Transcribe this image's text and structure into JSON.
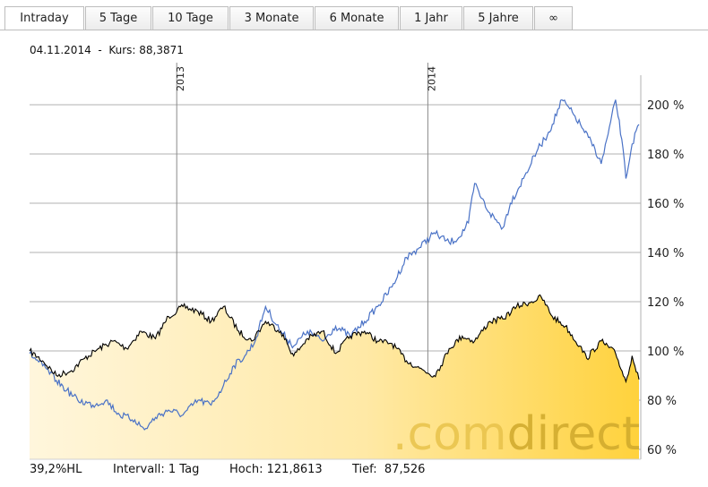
{
  "tabs": [
    {
      "label": "Intraday",
      "active": true
    },
    {
      "label": "5 Tage",
      "active": false
    },
    {
      "label": "10 Tage",
      "active": false
    },
    {
      "label": "3 Monate",
      "active": false
    },
    {
      "label": "6 Monate",
      "active": false
    },
    {
      "label": "1 Jahr",
      "active": false
    },
    {
      "label": "5 Jahre",
      "active": false
    },
    {
      "label": "∞",
      "active": false
    }
  ],
  "info": {
    "date": "04.11.2014",
    "separator": "-",
    "price_label": "Kurs:",
    "price": "88,3871"
  },
  "footer": {
    "hl": "39,2%HL",
    "interval": "Intervall: 1 Tag",
    "high": "Hoch: 121,8613",
    "low": "Tief:  87,526"
  },
  "watermark": {
    "part1": ".com",
    "part2": "direct"
  },
  "colors": {
    "main_line": "#000000",
    "comparison_line": "#4a72c6",
    "fill_light": "#fff6dc",
    "fill_dark": "#ffd23c",
    "grid": "#b0b0b0"
  },
  "chart_data": {
    "type": "line",
    "x_range": [
      "2012-06-01",
      "2014-11-04"
    ],
    "y_axis": {
      "min": 56,
      "max": 212,
      "ticks": [
        "200 %",
        "180 %",
        "160 %",
        "140 %",
        "120 %",
        "100 %",
        "80 %",
        "60 %"
      ],
      "tick_values": [
        200,
        180,
        160,
        140,
        120,
        100,
        80,
        60
      ]
    },
    "x_ticks": [
      {
        "label": "2013",
        "date": "2013-01-01"
      },
      {
        "label": "2014",
        "date": "2014-01-01"
      }
    ],
    "grid": true,
    "series": [
      {
        "role": "main",
        "points": [
          [
            "2012-06-01",
            100
          ],
          [
            "2012-06-20",
            96
          ],
          [
            "2012-07-10",
            90
          ],
          [
            "2012-08-01",
            92
          ],
          [
            "2012-08-20",
            97
          ],
          [
            "2012-09-10",
            101
          ],
          [
            "2012-10-01",
            104
          ],
          [
            "2012-10-20",
            101
          ],
          [
            "2012-11-10",
            108
          ],
          [
            "2012-12-01",
            105
          ],
          [
            "2012-12-20",
            114
          ],
          [
            "2013-01-10",
            118
          ],
          [
            "2013-02-01",
            116
          ],
          [
            "2013-02-20",
            112
          ],
          [
            "2013-03-10",
            118
          ],
          [
            "2013-04-01",
            108
          ],
          [
            "2013-04-20",
            104
          ],
          [
            "2013-05-10",
            112
          ],
          [
            "2013-06-01",
            108
          ],
          [
            "2013-06-20",
            98
          ],
          [
            "2013-07-10",
            105
          ],
          [
            "2013-08-01",
            108
          ],
          [
            "2013-08-20",
            99
          ],
          [
            "2013-09-10",
            106
          ],
          [
            "2013-10-01",
            108
          ],
          [
            "2013-10-20",
            104
          ],
          [
            "2013-11-10",
            103
          ],
          [
            "2013-12-01",
            96
          ],
          [
            "2013-12-20",
            93
          ],
          [
            "2014-01-10",
            90
          ],
          [
            "2014-01-20",
            94
          ],
          [
            "2014-02-01",
            101
          ],
          [
            "2014-02-20",
            106
          ],
          [
            "2014-03-10",
            104
          ],
          [
            "2014-04-01",
            112
          ],
          [
            "2014-04-20",
            113
          ],
          [
            "2014-05-10",
            118
          ],
          [
            "2014-06-01",
            120
          ],
          [
            "2014-06-15",
            121.86
          ],
          [
            "2014-07-01",
            114
          ],
          [
            "2014-07-20",
            110
          ],
          [
            "2014-08-10",
            102
          ],
          [
            "2014-08-20",
            97
          ],
          [
            "2014-09-10",
            104
          ],
          [
            "2014-10-01",
            99
          ],
          [
            "2014-10-16",
            87.53
          ],
          [
            "2014-10-25",
            98
          ],
          [
            "2014-11-04",
            88.39
          ]
        ]
      },
      {
        "role": "comparison",
        "points": [
          [
            "2012-06-01",
            99
          ],
          [
            "2012-06-20",
            94
          ],
          [
            "2012-07-10",
            88
          ],
          [
            "2012-07-25",
            84
          ],
          [
            "2012-08-10",
            80
          ],
          [
            "2012-09-01",
            78
          ],
          [
            "2012-09-20",
            80
          ],
          [
            "2012-10-10",
            74
          ],
          [
            "2012-11-01",
            72
          ],
          [
            "2012-11-15",
            68
          ],
          [
            "2012-12-01",
            73
          ],
          [
            "2012-12-20",
            76
          ],
          [
            "2013-01-10",
            74
          ],
          [
            "2013-02-01",
            80
          ],
          [
            "2013-02-20",
            78
          ],
          [
            "2013-03-10",
            86
          ],
          [
            "2013-03-25",
            94
          ],
          [
            "2013-04-10",
            98
          ],
          [
            "2013-04-25",
            104
          ],
          [
            "2013-05-10",
            118
          ],
          [
            "2013-06-01",
            108
          ],
          [
            "2013-06-20",
            102
          ],
          [
            "2013-07-10",
            108
          ],
          [
            "2013-08-01",
            104
          ],
          [
            "2013-08-20",
            110
          ],
          [
            "2013-09-10",
            106
          ],
          [
            "2013-10-01",
            112
          ],
          [
            "2013-10-20",
            118
          ],
          [
            "2013-11-10",
            126
          ],
          [
            "2013-12-01",
            138
          ],
          [
            "2013-12-20",
            142
          ],
          [
            "2014-01-10",
            148
          ],
          [
            "2014-02-01",
            144
          ],
          [
            "2014-02-15",
            146
          ],
          [
            "2014-03-01",
            152
          ],
          [
            "2014-03-10",
            168
          ],
          [
            "2014-03-20",
            162
          ],
          [
            "2014-04-01",
            156
          ],
          [
            "2014-04-20",
            150
          ],
          [
            "2014-05-01",
            160
          ],
          [
            "2014-05-20",
            170
          ],
          [
            "2014-06-10",
            182
          ],
          [
            "2014-06-20",
            186
          ],
          [
            "2014-07-01",
            192
          ],
          [
            "2014-07-15",
            202
          ],
          [
            "2014-08-01",
            196
          ],
          [
            "2014-08-15",
            190
          ],
          [
            "2014-09-01",
            182
          ],
          [
            "2014-09-10",
            176
          ],
          [
            "2014-09-20",
            188
          ],
          [
            "2014-10-01",
            202
          ],
          [
            "2014-10-10",
            186
          ],
          [
            "2014-10-16",
            170
          ],
          [
            "2014-10-25",
            184
          ],
          [
            "2014-11-04",
            192
          ]
        ]
      }
    ]
  }
}
